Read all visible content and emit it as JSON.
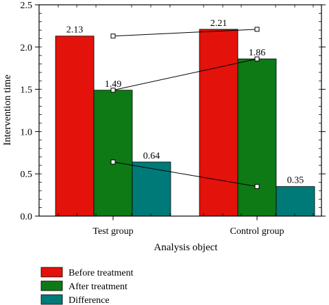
{
  "chart_data": {
    "type": "bar",
    "categories": [
      "Test group",
      "Control group"
    ],
    "series": [
      {
        "name": "Before treatment",
        "values": [
          2.13,
          2.21
        ],
        "color": "#e3120b"
      },
      {
        "name": "After treatment",
        "values": [
          1.49,
          1.86
        ],
        "color": "#0e7a16"
      },
      {
        "name": "Difference",
        "values": [
          0.64,
          0.35
        ],
        "color": "#007a78"
      }
    ],
    "data_labels": [
      [
        "2.13",
        "1.49",
        "0.64"
      ],
      [
        "2.21",
        "1.86",
        "0.35"
      ]
    ],
    "xlabel": "Analysis object",
    "ylabel": "Intervention time",
    "ylim": [
      0,
      2.5
    ],
    "yticks": [
      0,
      0.5,
      1.0,
      1.5,
      2.0,
      2.5
    ],
    "ytick_labels": [
      "0.0",
      "0.5",
      "1.0",
      "1.5",
      "2.0",
      "2.5"
    ],
    "minor_ticks": true,
    "connector_lines": true,
    "grid": false,
    "legend_position": "bottom"
  }
}
